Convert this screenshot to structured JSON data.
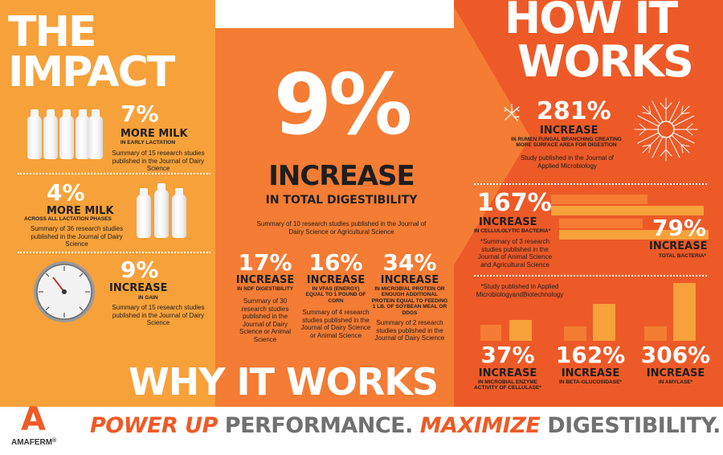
{
  "impact": {
    "title_line1": "THE",
    "title_line2": "IMPACT",
    "stat1": {
      "value": "7%",
      "label": "MORE MILK",
      "sub": "IN EARLY LACTATION",
      "note": "Summary of 15 research studies published in the Journal of Dairy Science"
    },
    "stat2": {
      "value": "4%",
      "label": "MORE MILK",
      "sub": "ACROSS ALL LACTATION PHASES",
      "note": "Summary of 36 research studies published in the Journal of Dairy Science"
    },
    "stat3": {
      "value": "9%",
      "label": "INCREASE",
      "sub": "IN GAIN",
      "note": "Summary of 15 research studies published in the Journal of Dairy Science"
    }
  },
  "center": {
    "big_value": "9%",
    "big_label": "INCREASE",
    "big_sub": "IN TOTAL DIGESTIBILITY",
    "big_note": "Summary  of 10 research studies published in the Journal of Dairy Science or Agricultural Science",
    "col1": {
      "value": "17%",
      "label": "INCREASE",
      "sub": "IN NDF DIGESTIBILITY",
      "note": "Summary of 30 research studies published in the Journal of Dairy Science or Animal Science"
    },
    "col2": {
      "value": "16%",
      "label": "INCREASE",
      "sub": "IN VFAS (ENERGY) EQUAL TO 1 POUND OF CORN",
      "note": "Summary of 4 research studies published in the Journal of Dairy Science or Animal Science"
    },
    "col3": {
      "value": "34%",
      "label": "INCREASE",
      "sub": "IN MICROBIAL PROTEIN OR ENOUGH ADDITIONAL PROTEIN EQUAL TO FEEDING 1 LB. OF SOYBEAN MEAL OR DDGS",
      "note": "Summary of 2 research studies published in the Journal of Dairy Science"
    },
    "why_title": "WHY IT WORKS"
  },
  "how": {
    "title_line1": "HOW IT",
    "title_line2": "WORKS",
    "fungal": {
      "value": "281%",
      "label": "INCREASE",
      "sub": "IN RUMEN FUNGAL BRANCHING CREATING MORE SURFACE AREA FOR DIGESTION",
      "note": "Study published in the Journal of Applied Microbiology"
    },
    "cellulolytic": {
      "value": "167%",
      "label": "INCREASE",
      "sub": "IN CELLULOLYTIC BACTERIA*",
      "note": "*Summary of 3 research studies published  in the Journal of Animal Science and Agricultural Science"
    },
    "total_bacteria": {
      "value": "79%",
      "label": "INCREASE",
      "sub": "TOTAL BACTERIA*"
    },
    "enzyme_note": "*Study published in Applied MicrobiologyandBiotechnology",
    "enzymes": [
      {
        "value": "37%",
        "label": "INCREASE",
        "sub": "IN MICROBIAL ENZYME ACTIVITY OF CELLULASE*"
      },
      {
        "value": "162%",
        "label": "INCREASE",
        "sub": "IN BETA-GLUCOSIDASE*"
      },
      {
        "value": "306%",
        "label": "INCREASE",
        "sub": "IN AMYLASE*"
      }
    ],
    "bars": {
      "cellulolytic": {
        "before": 1.0,
        "after": 2.67
      },
      "total": {
        "before": 1.0,
        "after": 1.79
      },
      "cellulase": {
        "before": 1.0,
        "after": 1.37
      },
      "glucosidase": {
        "before": 1.0,
        "after": 2.62
      },
      "amylase": {
        "before": 1.0,
        "after": 4.06
      }
    }
  },
  "footer": {
    "logo_letter": "A",
    "logo_name": "AMAFERM",
    "logo_mark": "®",
    "tag1": "POWER UP",
    "tag2": "PERFORMANCE.",
    "tag3": "MAXIMIZE",
    "tag4": "DIGESTIBILITY."
  },
  "colors": {
    "left_orange": "#f7a13a",
    "center_orange": "#f47c34",
    "right_orange": "#ed5a27",
    "bar_light": "#f7a13a",
    "bar_dark": "#f47c34",
    "footer_orange": "#ef5a26",
    "footer_gray": "#707070"
  }
}
